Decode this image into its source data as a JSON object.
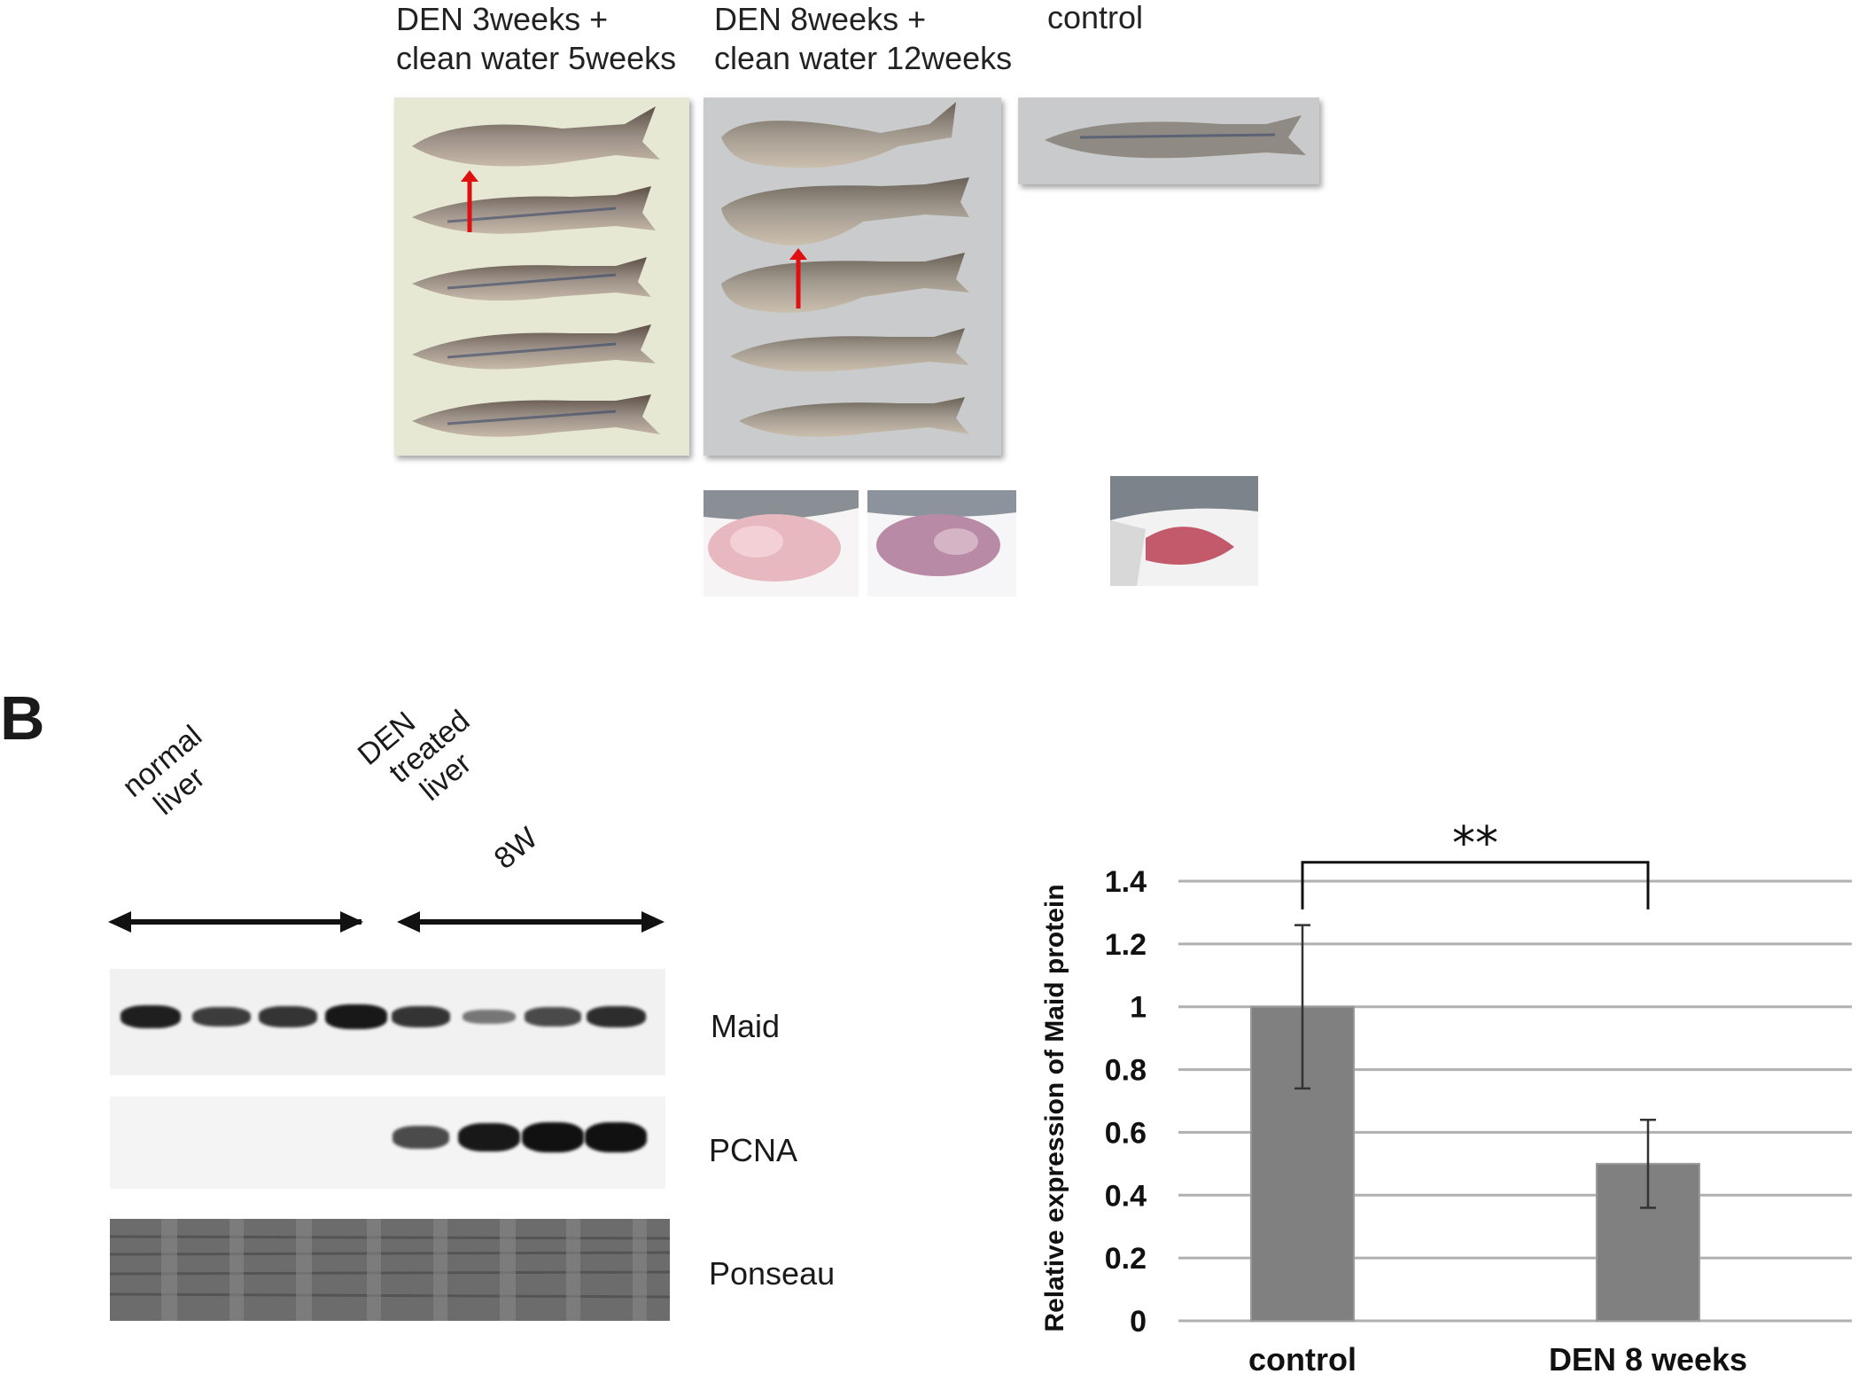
{
  "panel_a": {
    "header_1": "DEN 3weeks   +",
    "header_1b": "clean water 5weeks",
    "header_2": "DEN 8weeks   +",
    "header_2b": "clean water 12weeks",
    "header_3": "control"
  },
  "panel_b": {
    "letter": "B",
    "group_1": "normal liver",
    "group_1_line1": "normal",
    "group_1_line2": "liver",
    "group_2_line1": "DEN",
    "group_2_line2": "treated",
    "group_2_line3": "liver",
    "group_2_line4": "8W",
    "blot_labels": [
      "Maid",
      "PCNA",
      "Ponseau"
    ],
    "maid_band_intensity": [
      0.9,
      0.7,
      0.75,
      0.95,
      0.75,
      0.3,
      0.6,
      0.8
    ],
    "pcna_band_intensity": [
      0.0,
      0.0,
      0.0,
      0.0,
      0.6,
      0.95,
      1.0,
      1.0
    ]
  },
  "chart_data": {
    "type": "bar",
    "categories": [
      "control",
      "DEN 8 weeks"
    ],
    "values": [
      1.0,
      0.5
    ],
    "errors": [
      0.26,
      0.14
    ],
    "ylabel": "Relative expression of Maid protein",
    "ylim": [
      0,
      1.4
    ],
    "yticks": [
      "0",
      "0.2",
      "0.4",
      "0.6",
      "0.8",
      "1",
      "1.2",
      "1.4"
    ],
    "significance": "**",
    "grid": true,
    "bar_color": "#808080"
  }
}
